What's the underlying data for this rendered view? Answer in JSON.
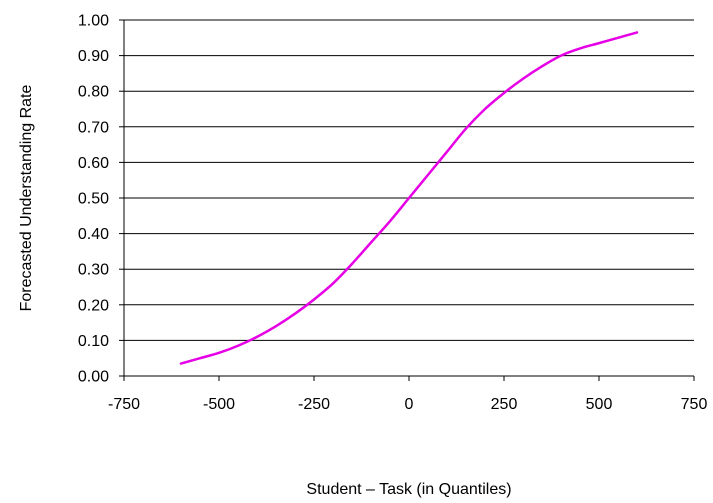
{
  "chart_data": {
    "type": "line",
    "title": "",
    "xlabel": "Student – Task (in Quantiles)",
    "ylabel": "Forecasted Understanding Rate",
    "xlim": [
      -750,
      750
    ],
    "ylim": [
      0,
      1
    ],
    "x_ticks": [
      -750,
      -500,
      -250,
      0,
      250,
      500,
      750
    ],
    "x_tick_labels": [
      "-750",
      "-500",
      "-250",
      "0",
      "250",
      "500",
      "750"
    ],
    "y_ticks": [
      0,
      0.1,
      0.2,
      0.3,
      0.4,
      0.5,
      0.6,
      0.7,
      0.8,
      0.9,
      1.0
    ],
    "y_tick_labels": [
      "0.00",
      "0.10",
      "0.20",
      "0.30",
      "0.40",
      "0.50",
      "0.60",
      "0.70",
      "0.80",
      "0.90",
      "1.00"
    ],
    "grid": true,
    "line_color": "#e600e6",
    "series": [
      {
        "x": [
          -600,
          -550,
          -500,
          -450,
          -400,
          -350,
          -300,
          -250,
          -200,
          -150,
          -100,
          -50,
          0,
          50,
          100,
          150,
          200,
          250,
          300,
          350,
          400,
          450,
          500,
          550,
          600
        ],
        "y": [
          0.035,
          0.05,
          0.065,
          0.085,
          0.11,
          0.14,
          0.175,
          0.215,
          0.26,
          0.315,
          0.375,
          0.435,
          0.5,
          0.565,
          0.63,
          0.695,
          0.75,
          0.795,
          0.835,
          0.87,
          0.9,
          0.92,
          0.935,
          0.95,
          0.965
        ]
      }
    ]
  }
}
